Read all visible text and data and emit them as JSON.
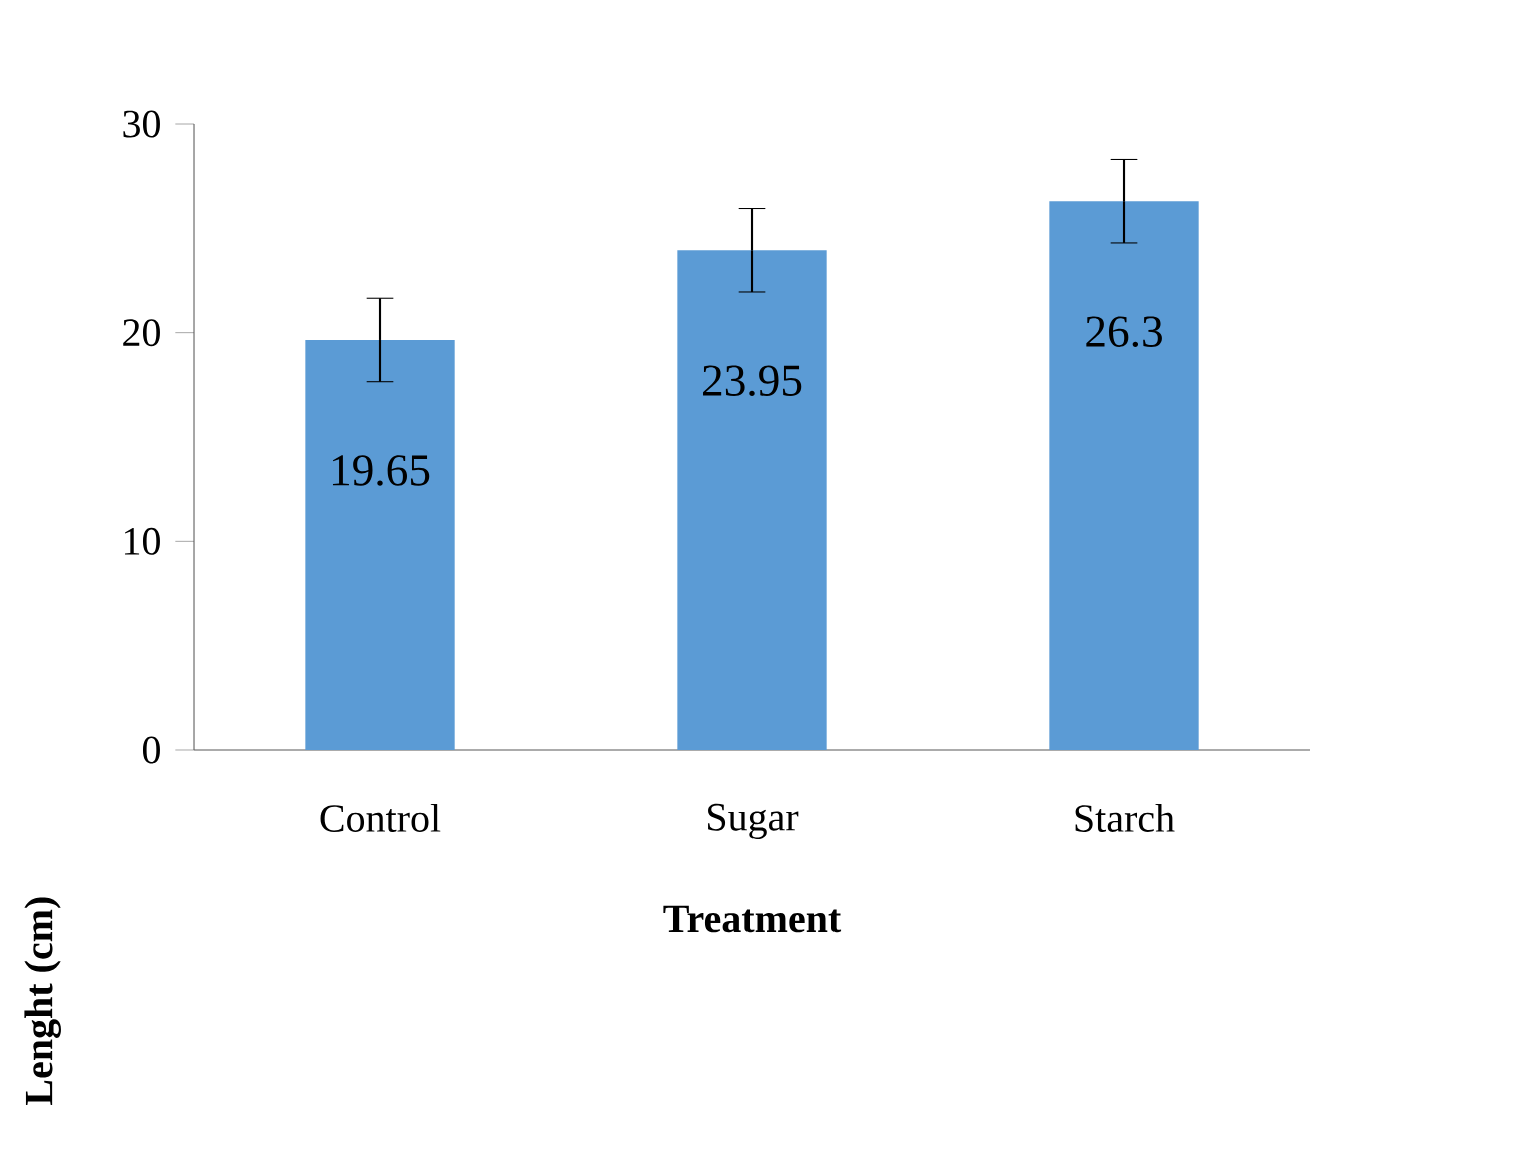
{
  "chart_data": {
    "type": "bar",
    "xlabel": "Treatment",
    "ylabel": "Lenght (cm)",
    "categories": [
      "Control",
      "Sugar",
      "Starch"
    ],
    "values": [
      19.65,
      23.95,
      26.3
    ],
    "errors": [
      2,
      2,
      2
    ],
    "color": "#5b9bd5",
    "ylim": [
      0,
      30
    ],
    "yticks": [
      0,
      10,
      20,
      30
    ],
    "data_labels": true,
    "grid": false
  }
}
